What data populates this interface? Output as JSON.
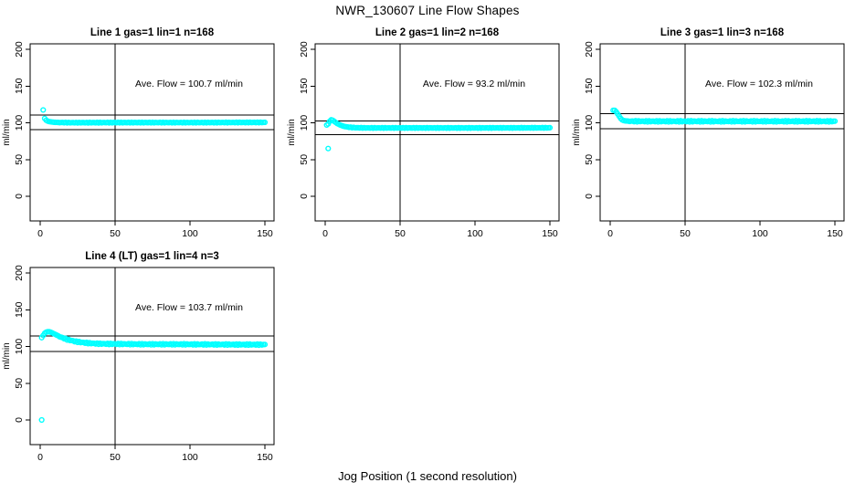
{
  "page": {
    "title": "NWR_130607  Line Flow Shapes",
    "xlabel": "Jog Position (1 second resolution)"
  },
  "chart_data": [
    {
      "id": "line1",
      "type": "scatter",
      "title": "Line 1 gas=1 lin=1 n=168",
      "annotation": "Ave. Flow =  100.7  ml/min",
      "ave_flow_ml_min": 100.7,
      "ylabel": "ml/min",
      "xlim": [
        0,
        150
      ],
      "ylim": [
        0,
        200
      ],
      "xticks": [
        0,
        50,
        100,
        150
      ],
      "yticks": [
        0,
        50,
        100,
        150,
        200
      ],
      "vline_x": 50,
      "hlines": [
        110.8,
        90.6
      ],
      "marker_color": "#00ffff",
      "band_jitter": 0.4,
      "points_profile": [
        [
          2,
          117.5
        ],
        [
          3,
          106
        ],
        [
          4,
          103.5
        ],
        [
          5,
          102.3
        ],
        [
          6,
          101.6
        ],
        [
          8,
          101
        ],
        [
          10,
          100.6
        ],
        [
          13,
          100.4
        ],
        [
          16,
          100.3
        ],
        [
          20,
          100.2
        ],
        [
          30,
          100.2
        ],
        [
          50,
          100.3
        ],
        [
          80,
          100.3
        ],
        [
          110,
          100.3
        ],
        [
          130,
          100.4
        ],
        [
          150,
          100.5
        ]
      ],
      "outliers": []
    },
    {
      "id": "line2",
      "type": "scatter",
      "title": "Line 2 gas=1 lin=2 n=168",
      "annotation": "Ave. Flow =  93.2  ml/min",
      "ave_flow_ml_min": 93.2,
      "ylabel": "ml/min",
      "xlim": [
        0,
        150
      ],
      "ylim": [
        0,
        200
      ],
      "xticks": [
        0,
        50,
        100,
        150
      ],
      "yticks": [
        0,
        50,
        100,
        150,
        200
      ],
      "vline_x": 50,
      "hlines": [
        102.5,
        83.9
      ],
      "marker_color": "#00ffff",
      "band_jitter": 0.35,
      "points_profile": [
        [
          1,
          97
        ],
        [
          2,
          98.5
        ],
        [
          3,
          102
        ],
        [
          4,
          104
        ],
        [
          5,
          103.5
        ],
        [
          6,
          102
        ],
        [
          7,
          100.5
        ],
        [
          8,
          99
        ],
        [
          10,
          97
        ],
        [
          12,
          95.5
        ],
        [
          15,
          94.2
        ],
        [
          18,
          93.6
        ],
        [
          22,
          93.2
        ],
        [
          30,
          93
        ],
        [
          60,
          93
        ],
        [
          100,
          93
        ],
        [
          130,
          93.1
        ],
        [
          150,
          93.2
        ]
      ],
      "outliers": [
        [
          2,
          65
        ]
      ]
    },
    {
      "id": "line3",
      "type": "scatter",
      "title": "Line 3 gas=1 lin=3 n=168",
      "annotation": "Ave. Flow =  102.3  ml/min",
      "ave_flow_ml_min": 102.3,
      "ylabel": "ml/min",
      "xlim": [
        0,
        150
      ],
      "ylim": [
        0,
        200
      ],
      "xticks": [
        0,
        50,
        100,
        150
      ],
      "yticks": [
        0,
        50,
        100,
        150,
        200
      ],
      "vline_x": 50,
      "hlines": [
        112.5,
        92.1
      ],
      "marker_color": "#00ffff",
      "band_jitter": 0.8,
      "points_profile": [
        [
          2,
          117
        ],
        [
          3,
          117
        ],
        [
          4,
          115
        ],
        [
          5,
          112
        ],
        [
          6,
          109
        ],
        [
          7,
          106
        ],
        [
          8,
          104
        ],
        [
          9,
          103
        ],
        [
          10,
          102.6
        ],
        [
          12,
          102.3
        ],
        [
          15,
          102.1
        ],
        [
          25,
          102
        ],
        [
          50,
          102
        ],
        [
          80,
          102
        ],
        [
          110,
          102
        ],
        [
          150,
          102
        ]
      ],
      "outliers": []
    },
    {
      "id": "line4",
      "type": "scatter",
      "title": "Line 4 (LT) gas=1 lin=4 n=3",
      "annotation": "Ave. Flow =  103.7  ml/min",
      "ave_flow_ml_min": 103.7,
      "ylabel": "ml/min",
      "xlim": [
        0,
        150
      ],
      "ylim": [
        0,
        200
      ],
      "xticks": [
        0,
        50,
        100,
        150
      ],
      "yticks": [
        0,
        50,
        100,
        150,
        200
      ],
      "vline_x": 50,
      "hlines": [
        114.1,
        93.3
      ],
      "marker_color": "#00ffff",
      "band_jitter": 0.8,
      "points_profile": [
        [
          2,
          115
        ],
        [
          3,
          118
        ],
        [
          4,
          119.5
        ],
        [
          5,
          120
        ],
        [
          6,
          120
        ],
        [
          7,
          119.5
        ],
        [
          8,
          118.5
        ],
        [
          10,
          116.5
        ],
        [
          12,
          114.5
        ],
        [
          14,
          112.5
        ],
        [
          16,
          111
        ],
        [
          18,
          109.5
        ],
        [
          20,
          108.5
        ],
        [
          23,
          107
        ],
        [
          26,
          106
        ],
        [
          30,
          105
        ],
        [
          34,
          104.3
        ],
        [
          38,
          103.8
        ],
        [
          45,
          103.5
        ],
        [
          55,
          103.3
        ],
        [
          70,
          103
        ],
        [
          90,
          103
        ],
        [
          110,
          102.8
        ],
        [
          130,
          102.6
        ],
        [
          150,
          102.5
        ]
      ],
      "outliers": [
        [
          1,
          0
        ],
        [
          1,
          112
        ]
      ]
    }
  ]
}
